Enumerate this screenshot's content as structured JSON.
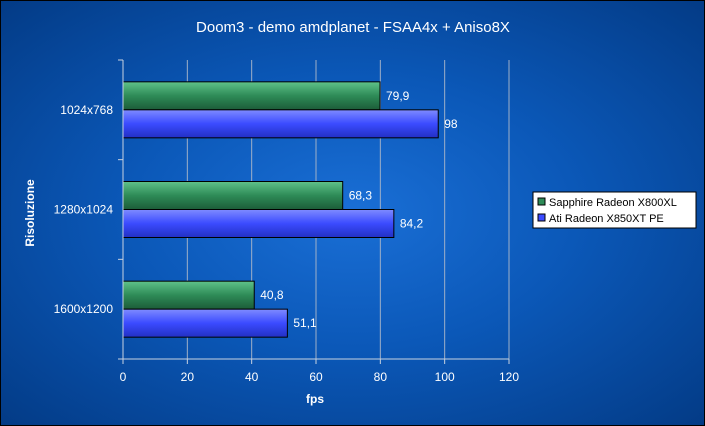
{
  "chart_data": {
    "type": "bar",
    "orientation": "horizontal",
    "title": "Doom3 - demo amdplanet - FSAA4x + Aniso8X",
    "xlabel": "fps",
    "ylabel": "Risoluzione",
    "categories": [
      "1024x768",
      "1280x1024",
      "1600x1200"
    ],
    "series": [
      {
        "name": "Sapphire Radeon X800XL",
        "values": [
          79.9,
          68.3,
          40.8
        ],
        "value_labels": [
          "79,9",
          "68,3",
          "40,8"
        ],
        "color": "#2e8b57"
      },
      {
        "name": "Ati Radeon X850XT PE",
        "values": [
          98,
          84.2,
          51.1
        ],
        "value_labels": [
          "98",
          "84,2",
          "51,1"
        ],
        "color": "#3b4bff"
      }
    ],
    "xlim": [
      0,
      120
    ],
    "xticks": [
      0,
      20,
      40,
      60,
      80,
      100,
      120
    ],
    "grid": true,
    "legend_position": "right"
  }
}
